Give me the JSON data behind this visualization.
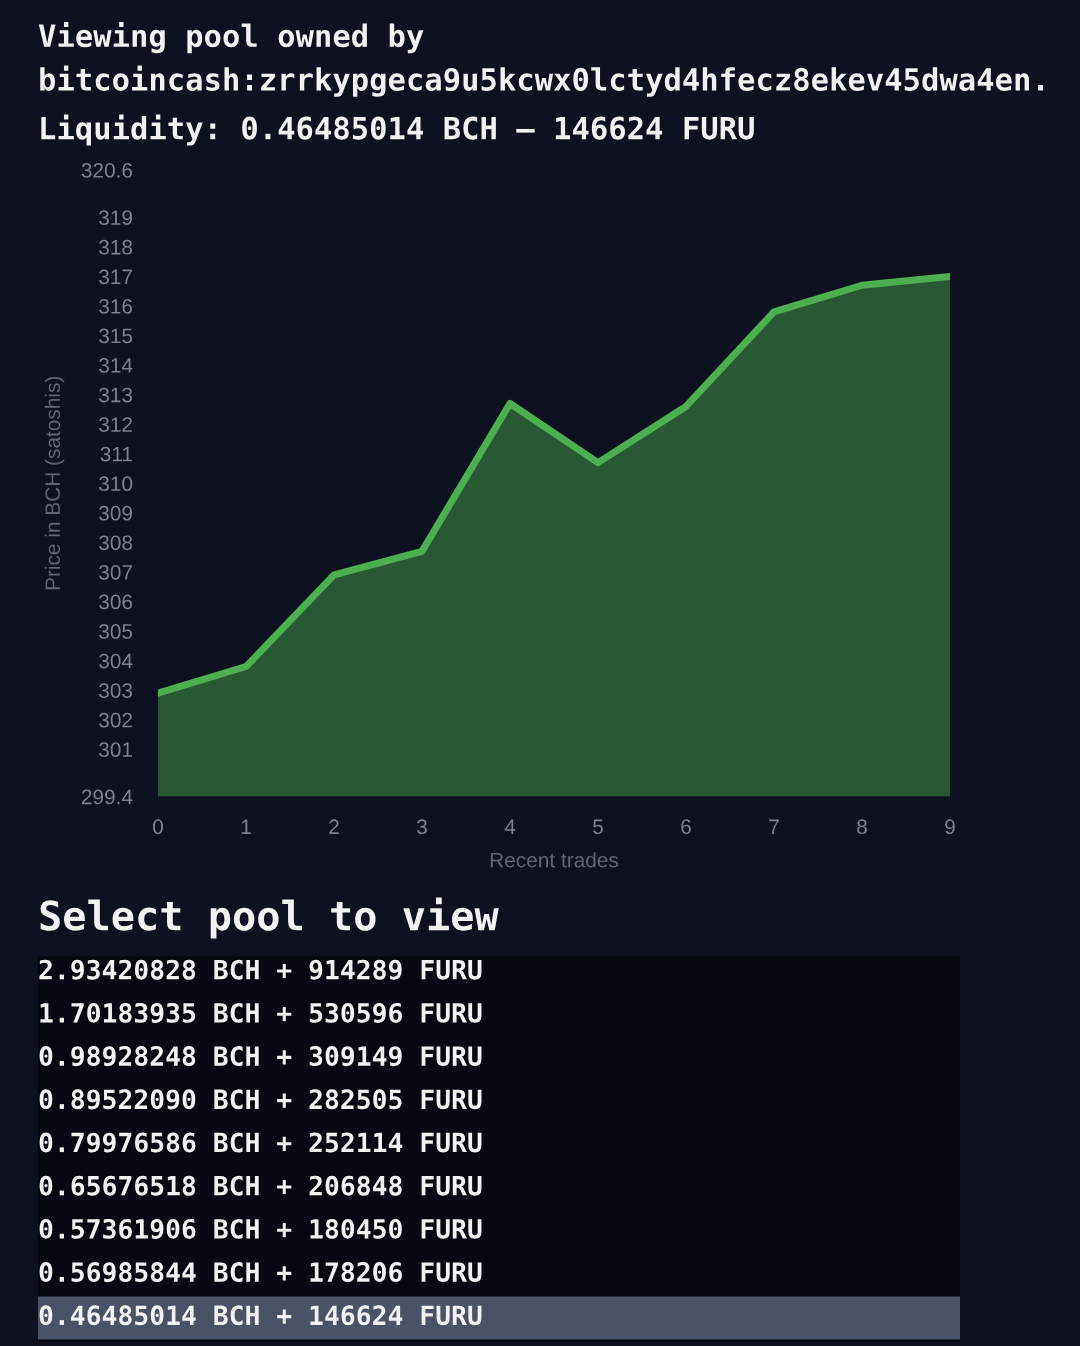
{
  "chart_data": {
    "type": "area",
    "title": "Viewing pool owned by bitcoincash:zrrkypgeca9u5kcwx0lctyd4hfecz8ekev45dwa4en.",
    "subtitle": "Liquidity: 0.46485014 BCH — 146624 FURU",
    "xlabel": "Recent trades",
    "ylabel": "Price in BCH (satoshis)",
    "categories": [
      "0",
      "1",
      "2",
      "3",
      "4",
      "5",
      "6",
      "7",
      "8",
      "9"
    ],
    "series": [
      {
        "color": "#4caf50",
        "values": [
          302.9,
          303.8,
          306.9,
          307.7,
          312.7,
          310.7,
          312.6,
          315.8,
          316.7,
          317.0
        ]
      }
    ],
    "ylim": [
      299.4,
      320.6
    ],
    "yticks": [
      299.4,
      301,
      302,
      303,
      304,
      305,
      306,
      307,
      308,
      309,
      310,
      311,
      312,
      313,
      314,
      315,
      316,
      317,
      318,
      319,
      320.6
    ],
    "grid": false,
    "annotations": [
      "Select pool to view",
      "2.93420828 BCH + 914289 FURU",
      "1.70183935 BCH + 530596 FURU",
      "0.98928248 BCH + 309149 FURU",
      "0.89522090 BCH + 282505 FURU",
      "0.79976586 BCH + 252114 FURU",
      "0.65676518 BCH + 206848 FURU",
      "0.57361906 BCH + 180450 FURU",
      "0.56985844 BCH + 178206 FURU",
      "0.46485014 BCH + 146624 FURU"
    ]
  }
}
